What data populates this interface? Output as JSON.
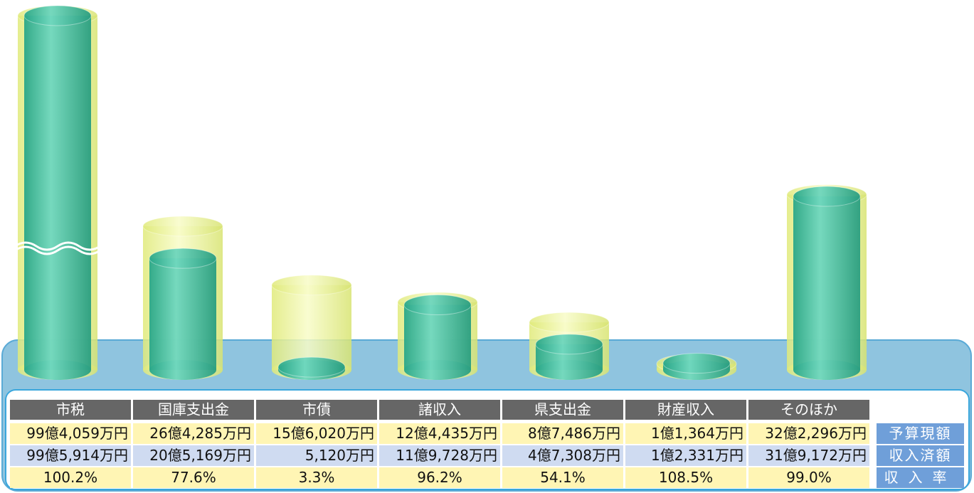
{
  "chart_data": {
    "type": "cylinder",
    "categories": [
      "市税",
      "国庫支出金",
      "市債",
      "諸収入",
      "県支出金",
      "財産収入",
      "そのほか"
    ],
    "series": [
      {
        "name": "予算現額",
        "color": "#eef59a",
        "values": [
          994059,
          264285,
          156020,
          124435,
          87486,
          11364,
          322296
        ],
        "value_labels": [
          "99億4,059万円",
          "26億4,285万円",
          "15億6,020万円",
          "12億4,435万円",
          "8億7,486万円",
          "1億1,364万円",
          "32億2,296万円"
        ]
      },
      {
        "name": "収入済額",
        "color": "#3dbf9e",
        "values": [
          995914,
          205169,
          5120,
          119728,
          47308,
          12331,
          319172
        ],
        "value_labels": [
          "99億5,914万円",
          "20億5,169万円",
          "5,120万円",
          "11億9,728万円",
          "4億7,308万円",
          "1億2,331万円",
          "31億9,172万円"
        ]
      }
    ],
    "rate": {
      "name": "収入率",
      "values": [
        100.2,
        77.6,
        3.3,
        96.2,
        54.1,
        108.5,
        99.0
      ],
      "value_labels": [
        "100.2%",
        "77.6%",
        "3.3%",
        "96.2%",
        "54.1%",
        "108.5%",
        "99.0%"
      ]
    }
  }
}
